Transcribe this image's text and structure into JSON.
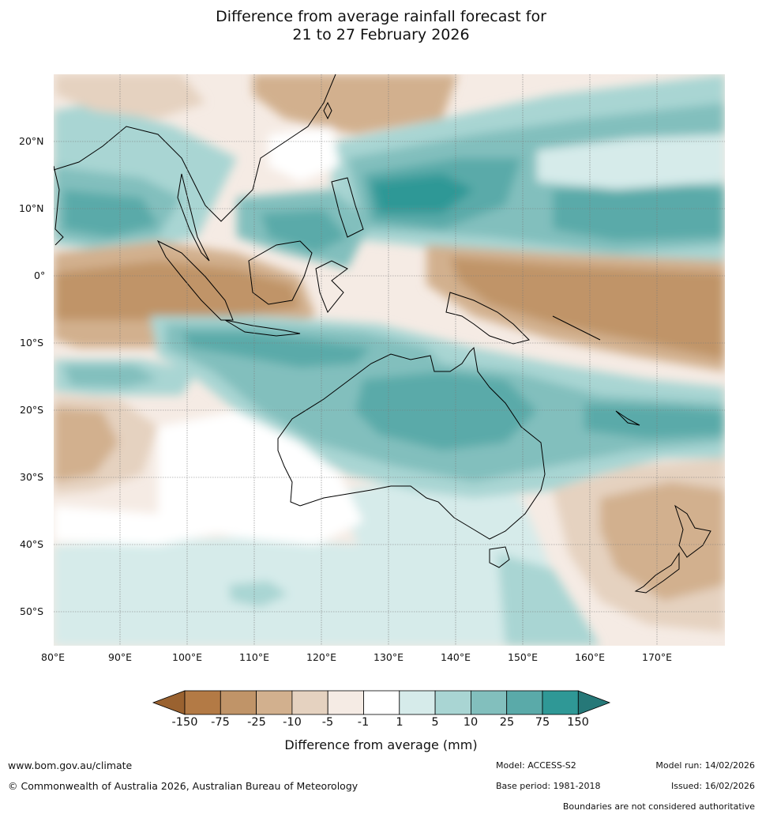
{
  "title": {
    "line1": "Difference from average rainfall forecast for",
    "line2": "21 to 27 February 2026"
  },
  "map": {
    "lon_labels": [
      "80°E",
      "90°E",
      "100°E",
      "110°E",
      "120°E",
      "130°E",
      "140°E",
      "150°E",
      "160°E",
      "170°E"
    ],
    "lat_labels": [
      "20°N",
      "10°N",
      "0°",
      "10°S",
      "20°S",
      "30°S",
      "40°S",
      "50°S"
    ]
  },
  "colorbar": {
    "labels": [
      "-150",
      "-75",
      "-25",
      "-10",
      "-5",
      "-1",
      "1",
      "5",
      "10",
      "25",
      "75",
      "150"
    ],
    "colors": [
      "#9a6230",
      "#b37a45",
      "#c09468",
      "#d2b08e",
      "#e5d2c0",
      "#f5ebe4",
      "#ffffff",
      "#d6ebea",
      "#a9d5d3",
      "#82bfbd",
      "#5aaaa9",
      "#2f9896",
      "#267878"
    ],
    "title": "Difference from average (mm)"
  },
  "footer": {
    "website": "www.bom.gov.au/climate",
    "copyright": "© Commonwealth of Australia 2026, Australian Bureau of Meteorology",
    "model": "Model: ACCESS-S2",
    "base_period": "Base period: 1981-2018",
    "model_run": "Model run: 14/02/2026",
    "issued": "Issued: 16/02/2026",
    "disclaimer": "Boundaries are not considered authoritative"
  }
}
